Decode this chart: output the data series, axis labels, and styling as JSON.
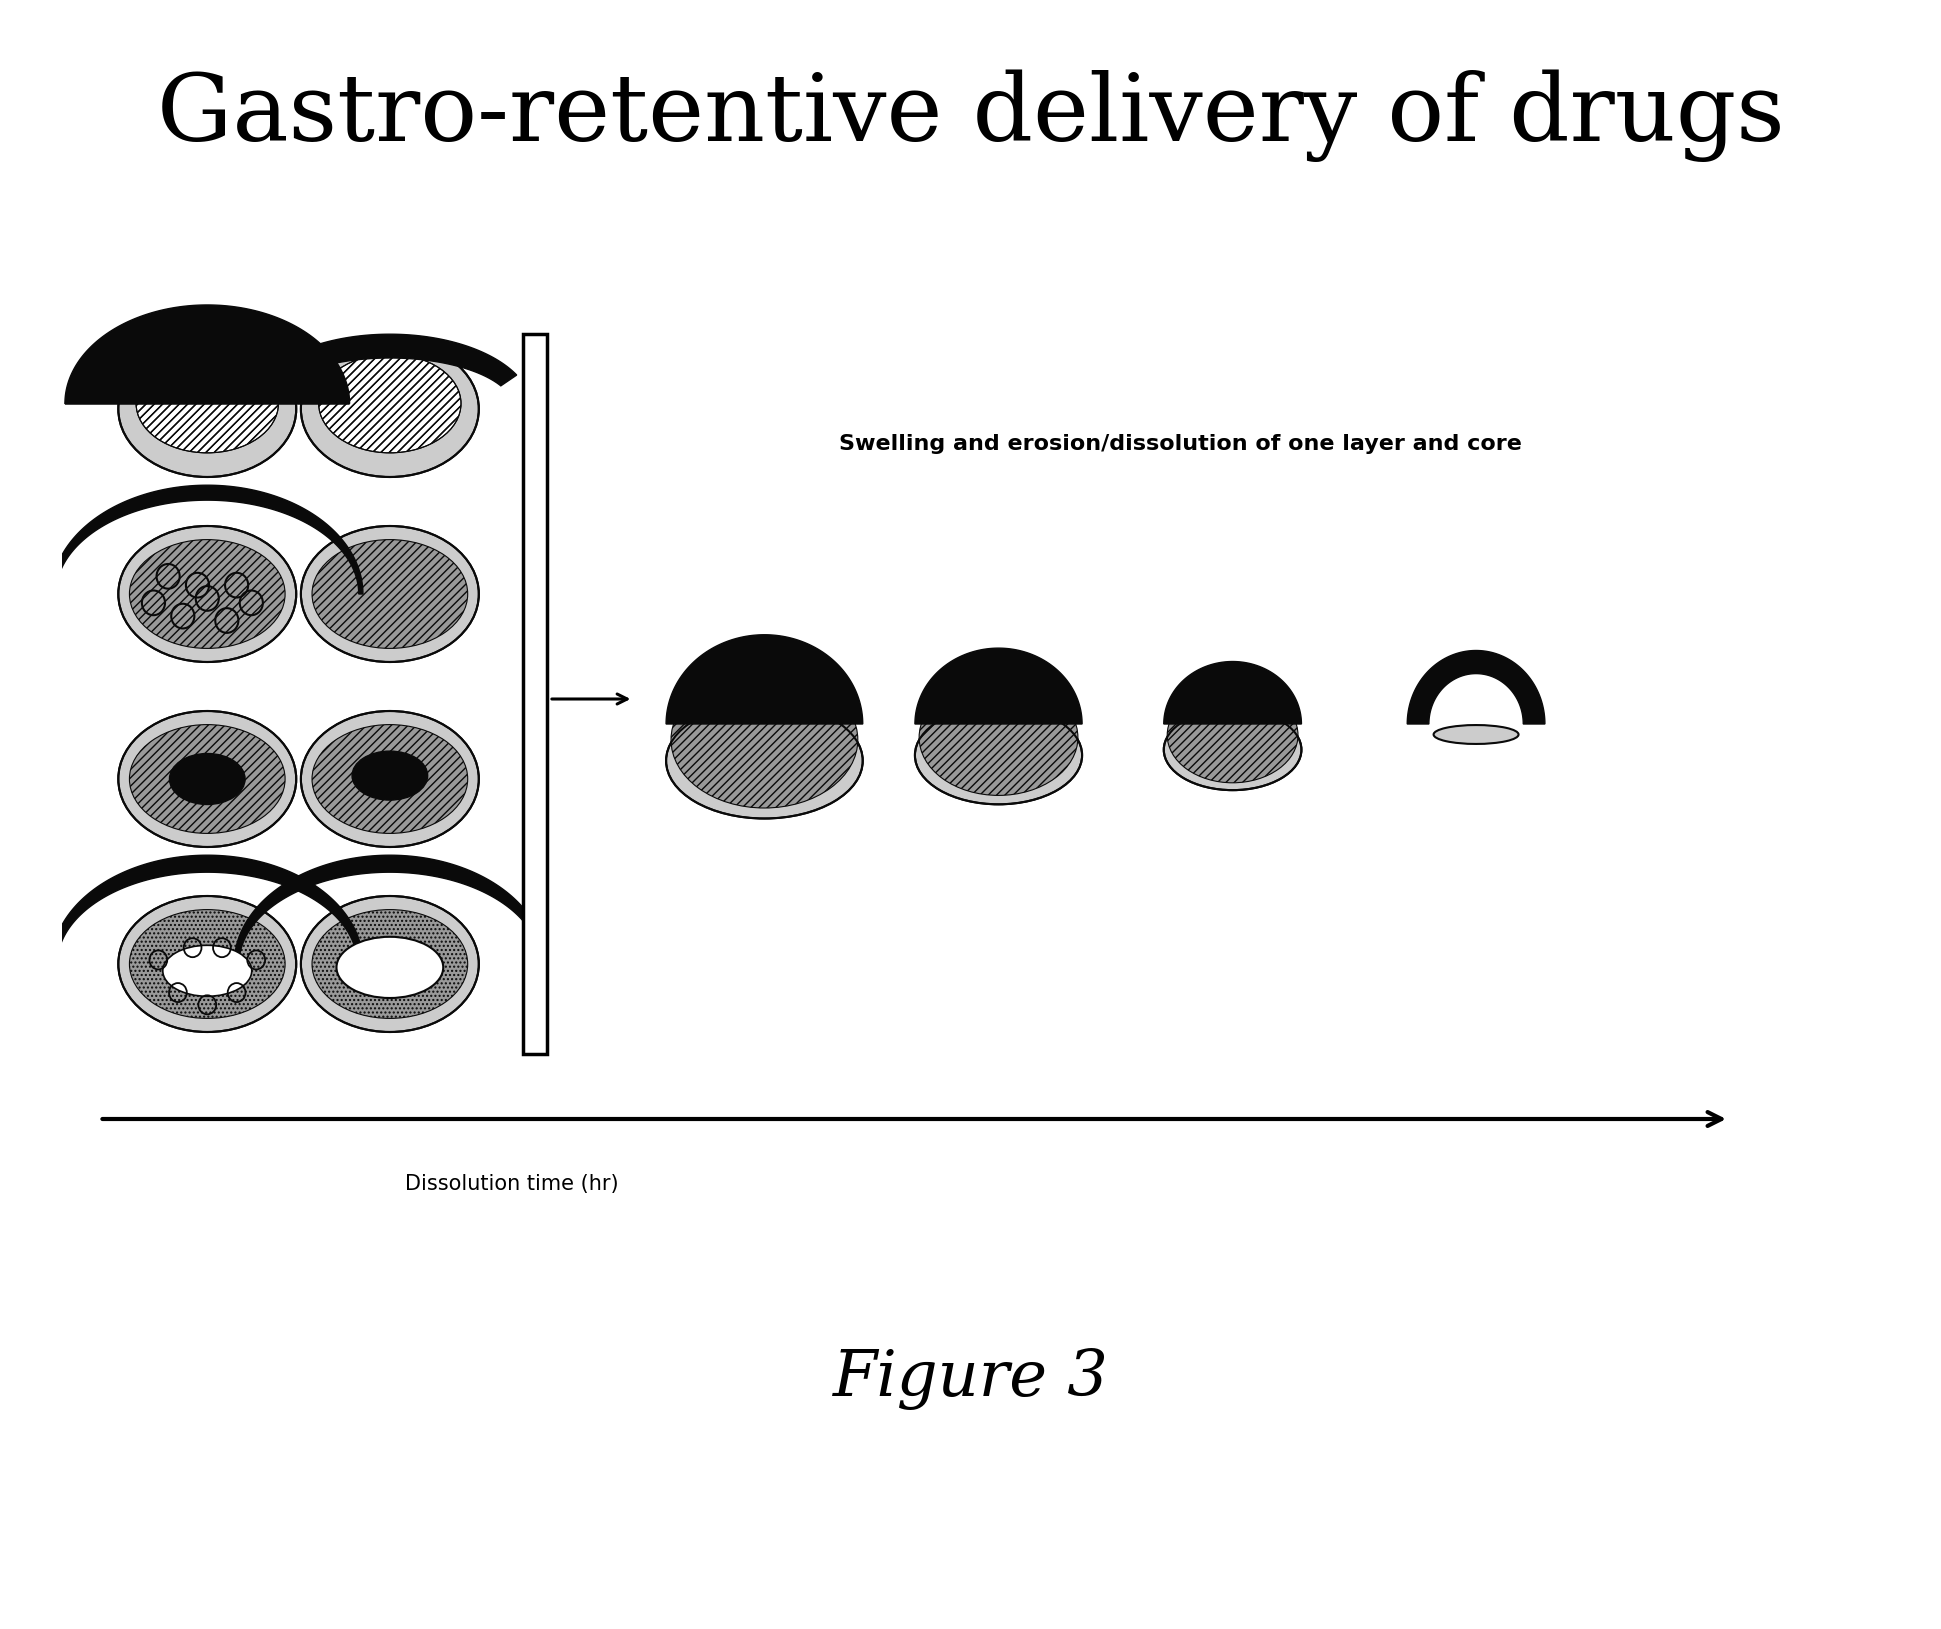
{
  "title": "Gastro-retentive delivery of drugs",
  "subtitle": "Swelling and erosion/dissolution of one layer and core",
  "arrow_label": "Dissolution time (hr)",
  "figure_label": "Figure 3",
  "bg_color": "#ffffff",
  "title_fontsize": 68,
  "subtitle_fontsize": 16,
  "arrow_label_fontsize": 15,
  "figure_label_fontsize": 46,
  "dark_color": "#0a0a0a",
  "mid_color": "#555555",
  "light_color": "#999999",
  "very_light_color": "#cccccc"
}
